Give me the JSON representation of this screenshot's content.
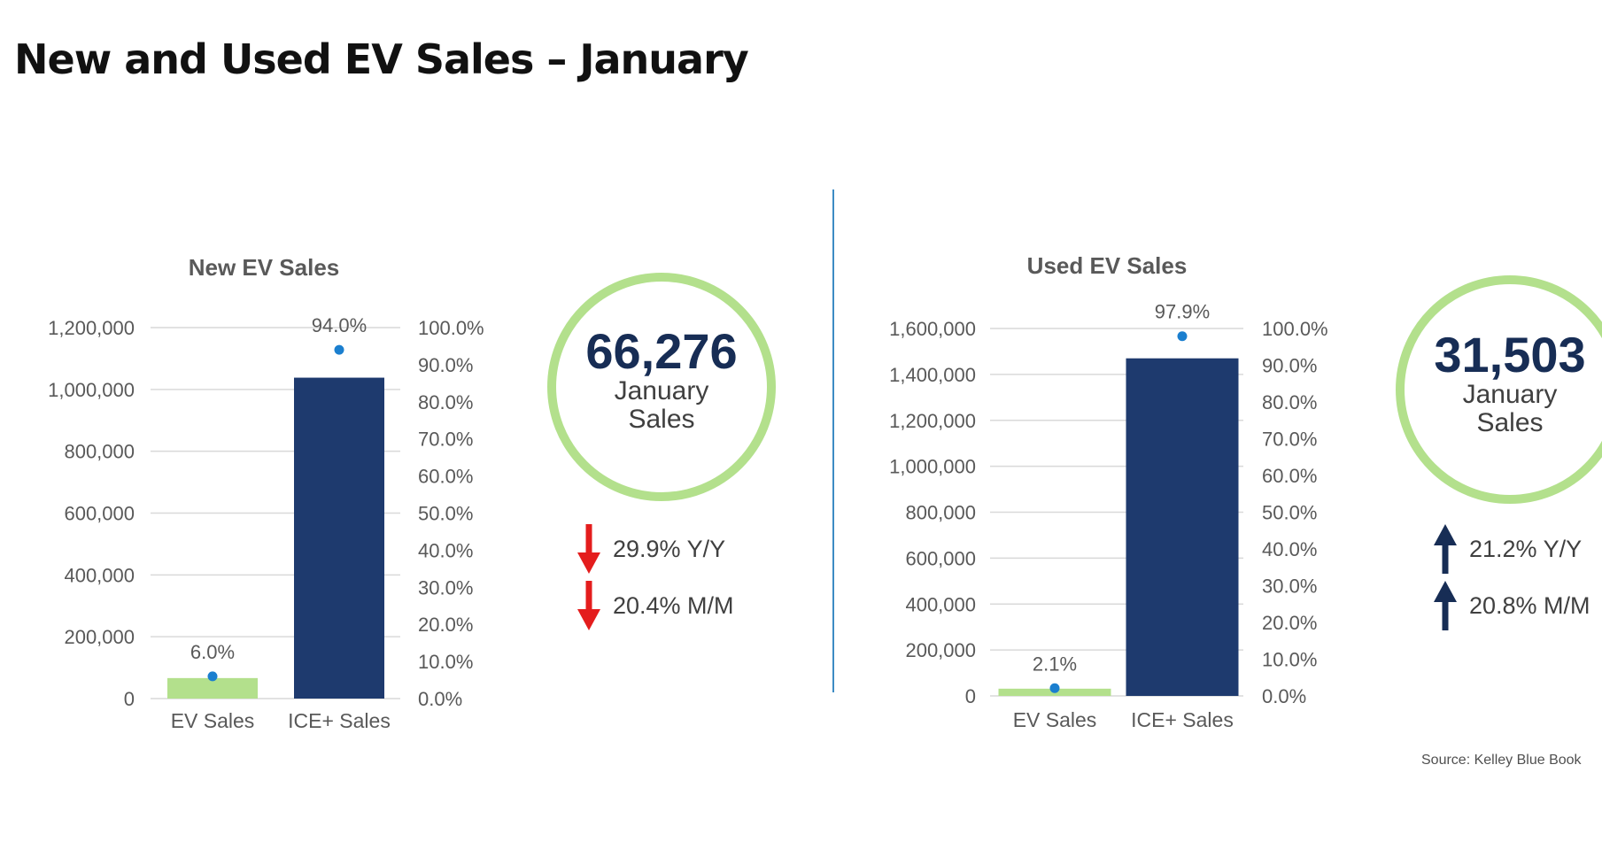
{
  "page_title": "New and Used EV Sales – January",
  "source": "Source: Kelley Blue Book",
  "colors": {
    "ev_bar": "#b3e08c",
    "ice_bar": "#1e3a6e",
    "share_dot": "#1b7fcf",
    "ring": "#b3e08c",
    "down_arrow": "#e41d1d",
    "up_arrow": "#172d55",
    "divider": "#3d8cc4"
  },
  "chart_data": [
    {
      "type": "bar",
      "title": "New EV Sales",
      "categories": [
        "EV Sales",
        "ICE+ Sales"
      ],
      "series": [
        {
          "values": [
            66276,
            1038000
          ],
          "axis": "left"
        },
        {
          "values": [
            6.0,
            94.0
          ],
          "axis": "right",
          "style": "dot"
        }
      ],
      "data_labels": [
        "6.0%",
        "94.0%"
      ],
      "ylim": [
        0,
        1200000
      ],
      "yticks": [
        "0",
        "200,000",
        "400,000",
        "600,000",
        "800,000",
        "1,000,000",
        "1,200,000"
      ],
      "y2lim": [
        0,
        100
      ],
      "y2ticks": [
        "0.0%",
        "10.0%",
        "20.0%",
        "30.0%",
        "40.0%",
        "50.0%",
        "60.0%",
        "70.0%",
        "80.0%",
        "90.0%",
        "100.0%"
      ],
      "grid": true
    },
    {
      "type": "bar",
      "title": "Used EV Sales",
      "categories": [
        "EV Sales",
        "ICE+ Sales"
      ],
      "series": [
        {
          "values": [
            31503,
            1470000
          ],
          "axis": "left"
        },
        {
          "values": [
            2.1,
            97.9
          ],
          "axis": "right",
          "style": "dot"
        }
      ],
      "data_labels": [
        "2.1%",
        "97.9%"
      ],
      "ylim": [
        0,
        1600000
      ],
      "yticks": [
        "0",
        "200,000",
        "400,000",
        "600,000",
        "800,000",
        "1,000,000",
        "1,200,000",
        "1,400,000",
        "1,600,000"
      ],
      "y2lim": [
        0,
        100
      ],
      "y2ticks": [
        "0.0%",
        "10.0%",
        "20.0%",
        "30.0%",
        "40.0%",
        "50.0%",
        "60.0%",
        "70.0%",
        "80.0%",
        "90.0%",
        "100.0%"
      ],
      "grid": true
    }
  ],
  "kpis": [
    {
      "value": "66,276",
      "label_line1": "January",
      "label_line2": "Sales",
      "changes": [
        {
          "text": "29.9% Y/Y",
          "direction": "down"
        },
        {
          "text": "20.4% M/M",
          "direction": "down"
        }
      ]
    },
    {
      "value": "31,503",
      "label_line1": "January",
      "label_line2": "Sales",
      "changes": [
        {
          "text": "21.2% Y/Y",
          "direction": "up"
        },
        {
          "text": "20.8% M/M",
          "direction": "up"
        }
      ]
    }
  ]
}
